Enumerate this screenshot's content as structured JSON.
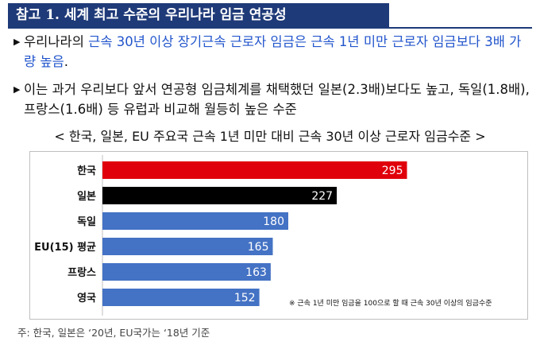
{
  "title": "참고 1. 세계 최고 수준의 우리나라 임금 연공성",
  "bullets": [
    {
      "pre": "우리나라의 ",
      "highlight": "근속 30년 이상 장기근속 근로자 임금은 근속 1년 미만 근로자 임금보다 3배 가량 높음",
      "post": "."
    },
    {
      "pre": "이는 과거 우리보다 앞서 연공형 임금체계를 채택했던 일본(2.3배)보다도 높고, 독일(1.8배), 프랑스(1.6배) 등 유럽과 비교해 월등히 높은 수준",
      "highlight": "",
      "post": ""
    }
  ],
  "chart_caption": "< 한국, 일본, EU 주요국 근속 1년 미만 대비 근속 30년 이상 근로자 임금수준 >",
  "chart_note": "※ 근속 1년 미만 임금을 100으로 할 때 근속 30년 이상의 임금수준",
  "footnote": "주: 한국, 일본은 ‘20년, EU국가는 ‘18년 기준",
  "colors": {
    "korea": "#e0000b",
    "japan": "#000000",
    "others": "#4472c4",
    "title_bg": "#1f3a78",
    "highlight_text": "#2255cc"
  },
  "chart_data": {
    "type": "bar",
    "orientation": "horizontal",
    "categories": [
      "한국",
      "일본",
      "독일",
      "EU(15) 평균",
      "프랑스",
      "영국"
    ],
    "values": [
      295,
      227,
      180,
      165,
      163,
      152
    ],
    "title": "",
    "xlabel": "",
    "ylabel": "",
    "xlim": [
      0,
      310
    ],
    "grid": false,
    "data_labels": true
  }
}
